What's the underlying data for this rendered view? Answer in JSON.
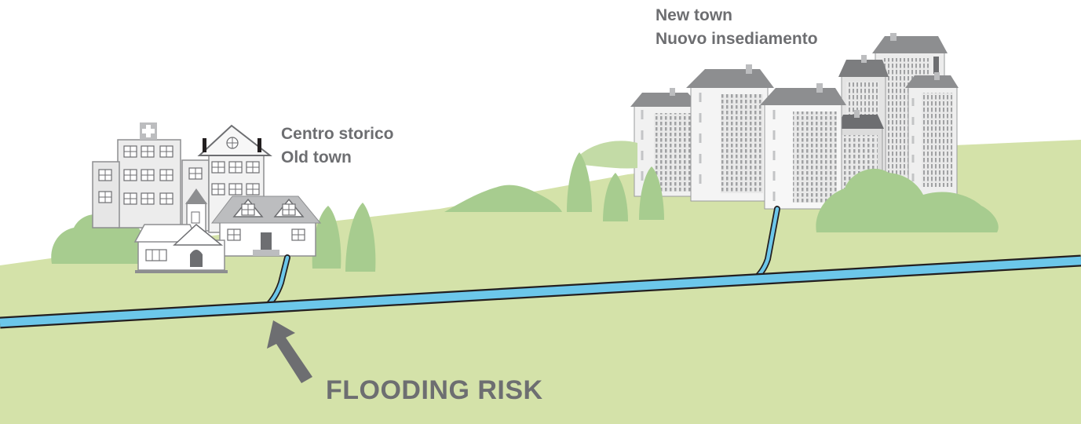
{
  "labels": {
    "old_town": [
      "Centro storico",
      "Old town"
    ],
    "new_town": [
      "New town",
      "Nuovo insediamento"
    ],
    "flood": "FLOODING RISK"
  },
  "colors": {
    "ground": "#d4e2a9",
    "river": "#6cc7ea",
    "outline": "#231f20",
    "building": "#ececec",
    "roof": "#8d8e90",
    "text": "#6d6e71",
    "tree": "#a7cc8f",
    "arrow": "#6d6e71"
  }
}
